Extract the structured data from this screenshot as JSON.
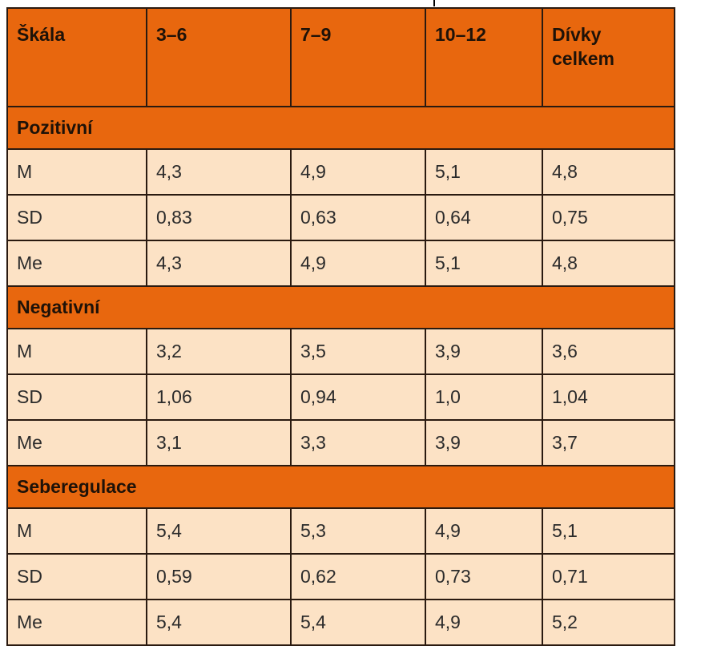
{
  "table": {
    "headers": [
      "Škála",
      "3–6",
      "7–9",
      "10–12",
      "Dívky\ncelkem"
    ],
    "sections": [
      {
        "title": "Pozitivní",
        "rows": [
          {
            "label": "M",
            "values": [
              "4,3",
              "4,9",
              "5,1",
              "4,8"
            ]
          },
          {
            "label": "SD",
            "values": [
              "0,83",
              "0,63",
              "0,64",
              "0,75"
            ]
          },
          {
            "label": "Me",
            "values": [
              "4,3",
              "4,9",
              "5,1",
              "4,8"
            ]
          }
        ]
      },
      {
        "title": "Negativní",
        "rows": [
          {
            "label": "M",
            "values": [
              "3,2",
              "3,5",
              "3,9",
              "3,6"
            ]
          },
          {
            "label": "SD",
            "values": [
              "1,06",
              "0,94",
              "1,0",
              "1,04"
            ]
          },
          {
            "label": "Me",
            "values": [
              "3,1",
              "3,3",
              "3,9",
              "3,7"
            ]
          }
        ]
      },
      {
        "title": "Seberegulace",
        "rows": [
          {
            "label": "M",
            "values": [
              "5,4",
              "5,3",
              "4,9",
              "5,1"
            ]
          },
          {
            "label": "SD",
            "values": [
              "0,59",
              "0,62",
              "0,73",
              "0,71"
            ]
          },
          {
            "label": "Me",
            "values": [
              "5,4",
              "5,4",
              "4,9",
              "5,2"
            ]
          }
        ]
      }
    ]
  },
  "colors": {
    "header_bg": "#e8670e",
    "cell_bg": "#fce2c5",
    "border": "#2a1a10"
  }
}
